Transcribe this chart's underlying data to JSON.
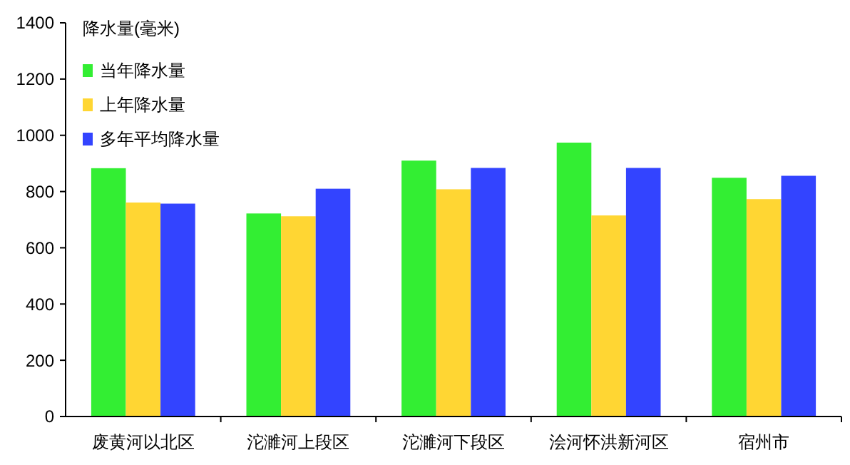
{
  "chart_data": {
    "type": "bar",
    "ylabel": "降水量(毫米)",
    "categories": [
      "废黄河以北区",
      "沱濉河上段区",
      "沱濉河下段区",
      "浍河怀洪新河区",
      "宿州市"
    ],
    "series": [
      {
        "name": "当年降水量",
        "color": "#33ee33",
        "values": [
          883,
          722,
          910,
          974,
          849
        ]
      },
      {
        "name": "上年降水量",
        "color": "#ffd633",
        "values": [
          761,
          712,
          808,
          715,
          773
        ]
      },
      {
        "name": "多年平均降水量",
        "color": "#3344ff",
        "values": [
          757,
          810,
          884,
          884,
          856
        ]
      }
    ],
    "ylim": [
      0,
      1400
    ],
    "yticks": [
      0,
      200,
      400,
      600,
      800,
      1000,
      1200,
      1400
    ],
    "grid": false,
    "legend": "top left"
  }
}
